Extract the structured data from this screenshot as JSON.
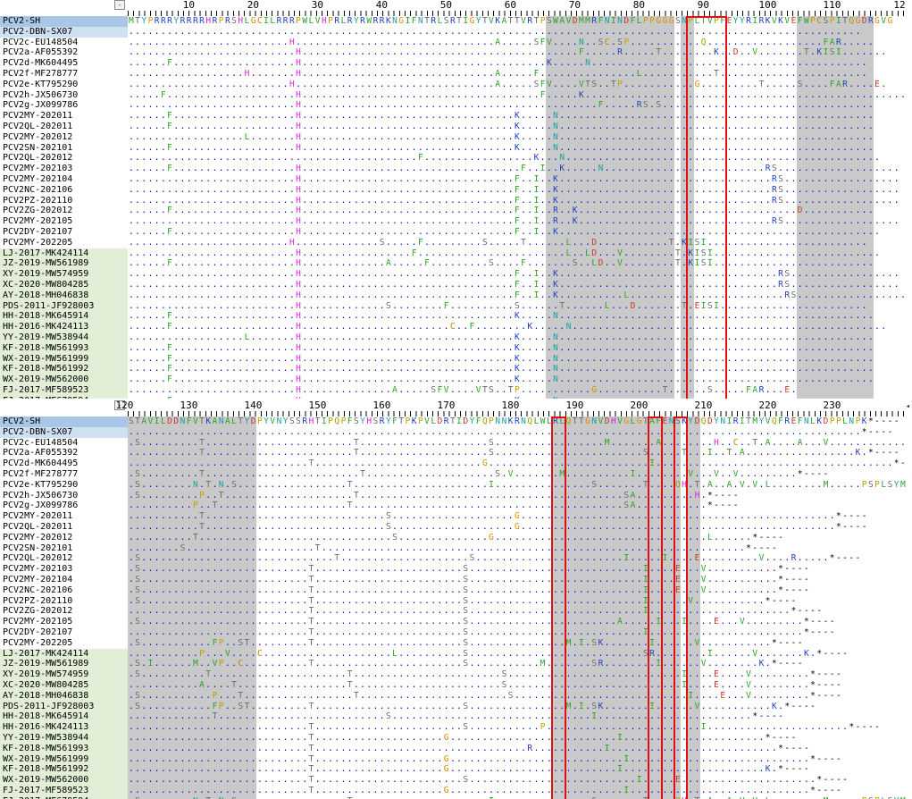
{
  "app": {
    "corner_symbol": "-",
    "scroll_arrow": "◂"
  },
  "colors": {
    "default": "#0000cc",
    "shade": "#c9c9c9",
    "highlight_box": "#e01010",
    "ref_row": "#a9c6e6",
    "group2": "#e2eed6",
    "A": "#2ca02c",
    "F": "#2ca02c",
    "H": "#d62bd6",
    "K": "#1f3fbf",
    "R": "#1f3fbf",
    "N": "#20a0a0",
    "S": "#6b6b6b",
    "T": "#6b6b6b",
    "L": "#2ca02c",
    "D": "#c0392b",
    "E": "#c0392b",
    "G": "#e08a00",
    "P": "#c0a000",
    "Q": "#a0a000",
    "I": "#2ca02c",
    "V": "#2ca02c",
    "M": "#2ca02c",
    "C": "#c08000",
    "Y": "#20a0a0",
    "W": "#2ca02c"
  },
  "sequences": [
    {
      "name": "PCV2-SH",
      "type": "ref"
    },
    {
      "name": "PCV2-DBN-SX07",
      "type": "sel"
    },
    {
      "name": "PCV2c-EU148504",
      "type": "plain"
    },
    {
      "name": "PCV2a-AF055392",
      "type": "plain"
    },
    {
      "name": "PCV2d-MK604495",
      "type": "plain"
    },
    {
      "name": "PCV2f-MF278777",
      "type": "plain"
    },
    {
      "name": "PCV2e-KT795290",
      "type": "plain"
    },
    {
      "name": "PCV2h-JX506730",
      "type": "plain"
    },
    {
      "name": "PCV2g-JX099786",
      "type": "plain"
    },
    {
      "name": "PCV2MY-202011",
      "type": "plain"
    },
    {
      "name": "PCV2QL-202011",
      "type": "plain"
    },
    {
      "name": "PCV2MY-202012",
      "type": "plain"
    },
    {
      "name": "PCV2SN-202101",
      "type": "plain"
    },
    {
      "name": "PCV2QL-202012",
      "type": "plain"
    },
    {
      "name": "PCV2MY-202103",
      "type": "plain"
    },
    {
      "name": "PCV2MY-202104",
      "type": "plain"
    },
    {
      "name": "PCV2NC-202106",
      "type": "plain"
    },
    {
      "name": "PCV2PZ-202110",
      "type": "plain"
    },
    {
      "name": "PCV2ZG-202012",
      "type": "plain"
    },
    {
      "name": "PCV2MY-202105",
      "type": "plain"
    },
    {
      "name": "PCV2DY-202107",
      "type": "plain"
    },
    {
      "name": "PCV2MY-202205",
      "type": "plain"
    },
    {
      "name": "LJ-2017-MK424114",
      "type": "green"
    },
    {
      "name": "JZ-2019-MW561989",
      "type": "green"
    },
    {
      "name": "XY-2019-MW574959",
      "type": "green"
    },
    {
      "name": "XC-2020-MW804285",
      "type": "green"
    },
    {
      "name": "AY-2018-MH046838",
      "type": "green"
    },
    {
      "name": "PDS-2011-JF928003",
      "type": "green"
    },
    {
      "name": "HH-2018-MK645914",
      "type": "green"
    },
    {
      "name": "HH-2016-MK424113",
      "type": "green"
    },
    {
      "name": "YY-2019-MW538944",
      "type": "green"
    },
    {
      "name": "KF-2018-MW561993",
      "type": "green"
    },
    {
      "name": "WX-2019-MW561999",
      "type": "green"
    },
    {
      "name": "KF-2018-MW561992",
      "type": "green"
    },
    {
      "name": "WX-2019-MW562000",
      "type": "green"
    },
    {
      "name": "FJ-2017-MF589523",
      "type": "green"
    },
    {
      "name": "FJ-2017-MF679594",
      "type": "green"
    }
  ],
  "panels": [
    {
      "id": "top",
      "ruler": [
        {
          "label": "10",
          "col": 10
        },
        {
          "label": "20",
          "col": 20
        },
        {
          "label": "30",
          "col": 30
        },
        {
          "label": "40",
          "col": 40
        },
        {
          "label": "50",
          "col": 50
        },
        {
          "label": "60",
          "col": 60
        },
        {
          "label": "70",
          "col": 70
        },
        {
          "label": "80",
          "col": 80
        },
        {
          "label": "90",
          "col": 90
        },
        {
          "label": "100",
          "col": 100
        },
        {
          "label": "110",
          "col": 110
        }
      ],
      "end_label": "12",
      "shaded_regions": [
        {
          "start": 65,
          "end": 84
        },
        {
          "start": 86,
          "end": 87
        },
        {
          "start": 104,
          "end": 115
        }
      ],
      "boxes": [
        {
          "start": 87,
          "end": 92
        }
      ],
      "rows": [
        "MTYPRRRYRRRRHRPRSHLGCILRRRPWLVHPRLRYRWRRKNGIFNTRLSRTIGYTVKATTVRTPSWAVDMMRFNINDFLPPGGGSNPLTVPFEYYRIRKVKVEFWPCSPITQGDRGVG",
        "..................................................................................................................",
        ".........................H...............................A.....SFV....N..SC.SP...........Q..................FAR.....",
        "..........................H...........................................F.....R.....T........K..D..V.......T.KISI.......",
        "......F...................H......................................K.....N...........................................",
        "..................H.......H..............................A.....F...............L...........T.......................",
        ".........................H...............................A.....SFV....VTS..TP...........G.........T.....S....FAR....E.",
        ".....F....................H.....................................F.....K......................................................",
        "..........................H..............................................F.....RS.S.................................",
        "......F...................H.................................K.....N.................................................",
        "......F...................H.................................K.....N.................................................",
        "..................L.......H.................................K.....N.................................................",
        "......F...................H.................................K.....N.................................................",
        ".............................................F.................K...N.................................................",
        "......F...................H..................................F..I..K.....N.........................RS...................",
        "..........................H.................................F..I..K.................................RS..................",
        "..........................H.................................F..I..K.................................RS..................",
        "..........................H.................................F..I..K.................................RS..................",
        "......F...................H.................................F..I..R..K..................................D...........",
        "..........................H.................................F..I..R..K..............................RS..................",
        "......F...................H.................................F..I..K..................................................",
        ".........................H.............S.....F.........S.....T......L...D...........T.KISI.........................",
        "..........................H.................F.......................L..LD...V........T.KISI..........................",
        "......F...................H.............A.....F.........S....F.......S..LD..V........T.KISI.........................",
        "..........................H.................................F..I..K..................................RS.................",
        "..........................H.................................F..I..K..................................RS.................",
        "..........................H.................................F..I..K..........L........................RS.................",
        "..........................H.............S........F..........S......T......L...D.......T.EISI.......................",
        "......F...................H.................................K.....N.................................................",
        "......F...................H.......................C..F........K.....N.................................................",
        "..................L.......H.................................K.....N.................................................",
        "......F...................H.................................K.....N.................................................",
        "......F...................H.................................K.....N.................................................",
        "......F...................H.................................K.....N.................................................",
        "......F...................H.................................K.....N.................................................",
        "..........................H..............A.....SFV....VTS..TP...........G..........T......S.....FAR...E.",
        "......F...................H.................................K.....N.................................................."
      ]
    },
    {
      "id": "bottom",
      "ruler": [
        {
          "label": "120",
          "col": 0
        },
        {
          "label": "130",
          "col": 10
        },
        {
          "label": "140",
          "col": 20
        },
        {
          "label": "150",
          "col": 30
        },
        {
          "label": "160",
          "col": 40
        },
        {
          "label": "170",
          "col": 50
        },
        {
          "label": "180",
          "col": 60
        },
        {
          "label": "190",
          "col": 70
        },
        {
          "label": "200",
          "col": 80
        },
        {
          "label": "210",
          "col": 90
        },
        {
          "label": "220",
          "col": 100
        },
        {
          "label": "230",
          "col": 110
        }
      ],
      "end_label": "",
      "shaded_regions": [
        {
          "start": 0,
          "end": 19
        },
        {
          "start": 66,
          "end": 85
        },
        {
          "start": 87,
          "end": 88
        }
      ],
      "boxes": [
        {
          "start": 66,
          "end": 67
        },
        {
          "start": 81,
          "end": 82
        },
        {
          "start": 85,
          "end": 86
        }
      ],
      "rows": [
        "STAVILDDNFVTKANALTYDPYVNYSSRHTIPQPFSYHSRYFTPKPVLDRTIDYFQPNNKRNQLWLRLQTTGNVDHVGLGTAFENSKYDQDYNIRITMYVQFREFNLKDPPLNPK*----",
        "..................................................................................................................*----",
        ".S.........T.......................T....................S.................M.......A........H..C..T.A....A...V..............*----",
        "...........T.......................T....................S.......................S.....T...I..T.A.................K.*----",
        "............................T..........................G.........................I.....................................*----",
        ".S.........T........................T....................S.V.......M..........I........V...V..V.........*----",
        ".S........N.T.N.S.................T.....................I...............S.......T....QH.T.A..A.V.V.L........M.....PSPLSYM*",
        ".S.........P..T....................T.........................................SA.........H.*----",
        "..........P..T....................T..........................................SA...........*----",
        "...........T............................S...................G.................................................*----",
        "...........T............................S...................G.................................................*----",
        "..........T..............................S..............G.................................L......*----",
        "........S....................T..................................................................*----",
        ".S..............................T....................S.......................I.....I....E.........V....R.....*----",
        ".S..........................T.......................S...........................I....E...V...........*----",
        ".S..........................T.......................S...........................I....E...V...........*----",
        ".S..........................T.......................S...........................I....E...V...........*----",
        ".S..........................T.......................S...........................I......V...........*----",
        "............................T.......................S...........................I......................*----",
        ".S..........................T.......................S.......................A.....I...I....E...V.........*----",
        "............................T.......................S...........................I........................*----",
        ".S...........FP..ST.........T.......................S...............M.I.SK.......I......V...........*----",
        "...........P...V....C....................L..........S...........................SR........I......V.......K.*----",
        ".S.I......M..VP..C..........T.......................S...........M.......SR........I......V........K.*----",
        ".S..........T.....................T.......................S...........................I....E....V.........*----",
        "...........A....T.................T.......................S...........................I....E....V.........*----",
        ".S...........P...T.................T.......................S...........................I....E...V.........*----",
        ".S...........FP..ST.........T.......................S...............M.I.SK.......I......V...........K.*----",
        ".............T..........................S...............................I........................*----",
        "............................T.......................S...........P........................I......................*----",
        "............................T....................G..........................I......................*----",
        "............................T.................................R...........I..........................*----",
        "............................T....................G...........................I............................*----",
        "............................T....................G..........................I......................K.*----",
        "............................T.......................S..........................I.....E.....................*----",
        "............................T....................G...........................I............................*----",
        ".S........N.T.N.S.................T.....................I...............S.......T....QH.T.A..A.V.V.L........M.....PSPLSYM*",
        "............................T........................................................................*----"
      ]
    }
  ]
}
